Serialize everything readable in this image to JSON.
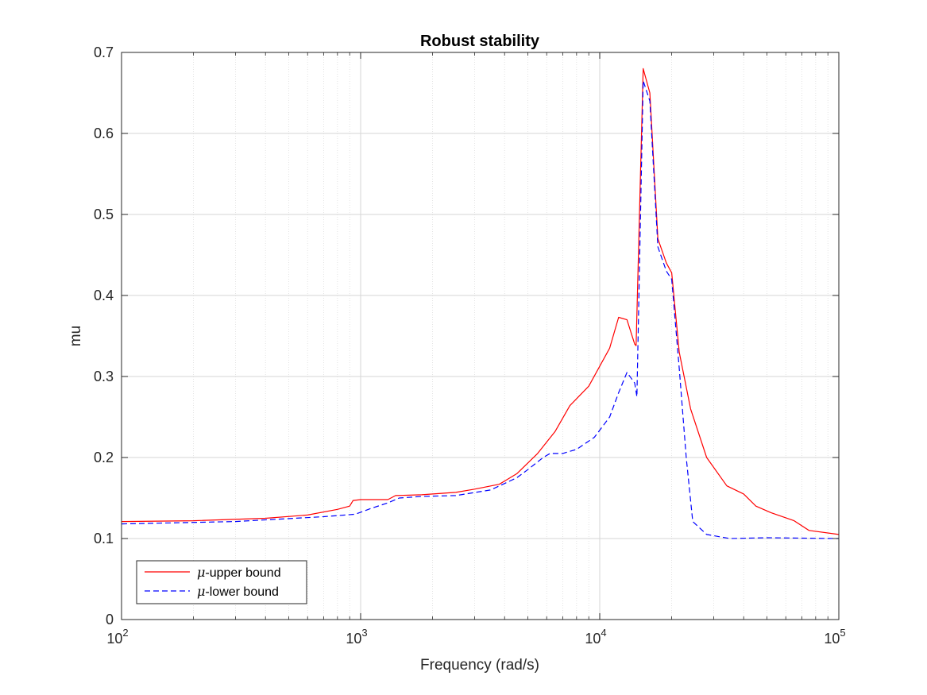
{
  "chart_data": {
    "type": "line",
    "title": "Robust stability",
    "xlabel": "Frequency (rad/s)",
    "ylabel": "mu",
    "xscale": "log",
    "xlim": [
      100,
      100000
    ],
    "ylim": [
      0,
      0.7
    ],
    "grid": true,
    "legend_location": "bottom-left",
    "x_ticks": [
      {
        "value": 100,
        "base": "10",
        "exp": "2"
      },
      {
        "value": 1000,
        "base": "10",
        "exp": "3"
      },
      {
        "value": 10000,
        "base": "10",
        "exp": "4"
      },
      {
        "value": 100000,
        "base": "10",
        "exp": "5"
      }
    ],
    "y_ticks": [
      {
        "value": 0,
        "label": "0"
      },
      {
        "value": 0.1,
        "label": "0.1"
      },
      {
        "value": 0.2,
        "label": "0.2"
      },
      {
        "value": 0.3,
        "label": "0.3"
      },
      {
        "value": 0.4,
        "label": "0.4"
      },
      {
        "value": 0.5,
        "label": "0.5"
      },
      {
        "value": 0.6,
        "label": "0.6"
      },
      {
        "value": 0.7,
        "label": "0.7"
      }
    ],
    "series": [
      {
        "name": "μ-upper bound",
        "legend_symbol": "μ",
        "legend_suffix": "-upper bound",
        "color": "#ff0000",
        "style": "solid",
        "x": [
          100,
          200,
          400,
          600,
          800,
          900,
          930,
          1000,
          1300,
          1400,
          1800,
          2500,
          3000,
          3800,
          4500,
          5500,
          6500,
          7500,
          9000,
          11000,
          12000,
          13000,
          14000,
          14200,
          15200,
          16200,
          17500,
          19000,
          20000,
          21500,
          24000,
          28000,
          34000,
          40000,
          45000,
          52000,
          65000,
          75000,
          100000
        ],
        "y": [
          0.121,
          0.122,
          0.125,
          0.129,
          0.136,
          0.14,
          0.147,
          0.148,
          0.148,
          0.153,
          0.154,
          0.157,
          0.161,
          0.167,
          0.18,
          0.205,
          0.232,
          0.264,
          0.288,
          0.335,
          0.373,
          0.37,
          0.34,
          0.338,
          0.68,
          0.65,
          0.47,
          0.44,
          0.428,
          0.33,
          0.26,
          0.2,
          0.165,
          0.155,
          0.14,
          0.132,
          0.122,
          0.11,
          0.105
        ]
      },
      {
        "name": "μ-lower bound",
        "legend_symbol": "μ",
        "legend_suffix": "-lower bound",
        "color": "#0000ff",
        "style": "dashed",
        "x": [
          100,
          300,
          700,
          950,
          1100,
          1300,
          1450,
          1800,
          2500,
          3500,
          4500,
          5000,
          5800,
          6200,
          7000,
          8000,
          9500,
          11000,
          12000,
          13000,
          14000,
          14300,
          15200,
          16200,
          17500,
          19000,
          20000,
          21500,
          23000,
          24500,
          28000,
          35000,
          50000,
          100000
        ],
        "y": [
          0.118,
          0.121,
          0.127,
          0.13,
          0.137,
          0.144,
          0.15,
          0.152,
          0.153,
          0.16,
          0.175,
          0.185,
          0.2,
          0.205,
          0.205,
          0.21,
          0.225,
          0.25,
          0.28,
          0.305,
          0.292,
          0.275,
          0.665,
          0.64,
          0.46,
          0.43,
          0.42,
          0.31,
          0.2,
          0.121,
          0.105,
          0.1,
          0.101,
          0.1
        ]
      }
    ]
  }
}
